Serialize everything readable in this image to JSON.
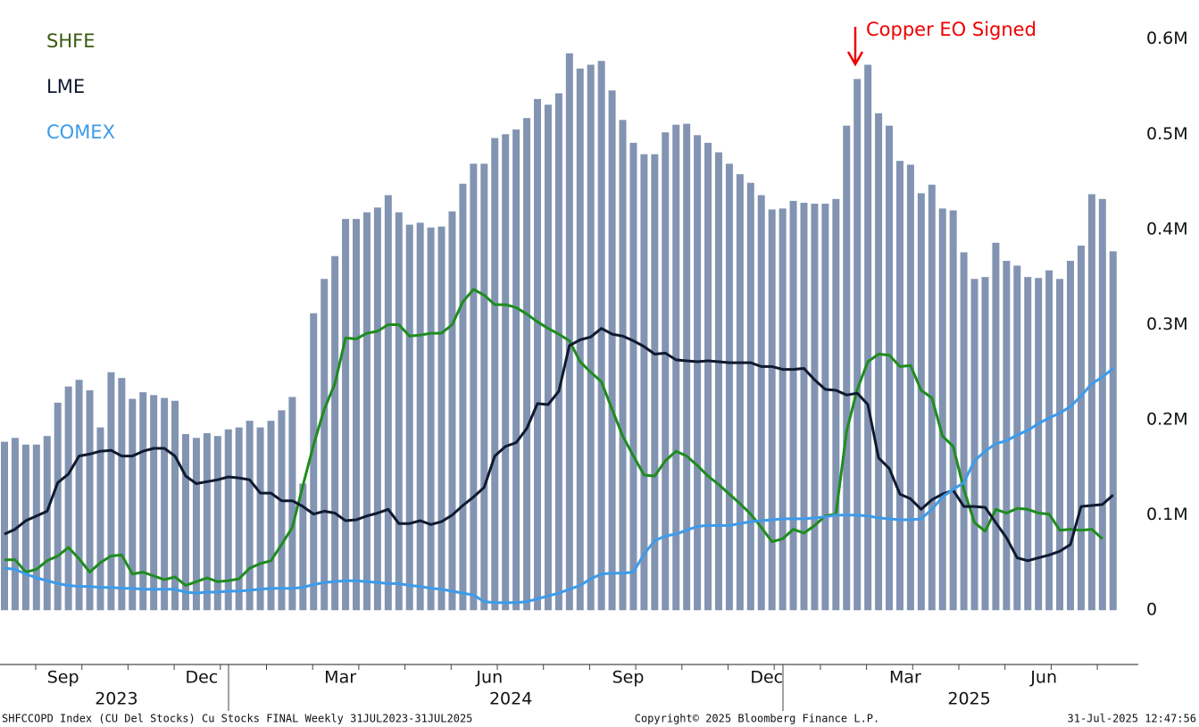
{
  "chart_data": {
    "type": "bar",
    "annotation": "Copper EO Signed",
    "footer": {
      "left": "SHFCCOPD Index (CU Del Stocks) Cu Stocks FINAL  Weekly 31JUL2023-31JUL2025",
      "center": "Copyright© 2025 Bloomberg Finance L.P.",
      "right": "31-Jul-2025 12:47:56"
    },
    "categories": [
      null,
      null,
      null,
      null,
      null,
      "Sep",
      null,
      null,
      null,
      null,
      null,
      null,
      null,
      null,
      null,
      null,
      null,
      null,
      "Dec",
      null,
      null,
      null,
      null,
      null,
      null,
      null,
      null,
      null,
      null,
      null,
      null,
      "Mar",
      null,
      null,
      null,
      null,
      null,
      null,
      null,
      null,
      null,
      null,
      null,
      null,
      null,
      "Jun",
      null,
      null,
      null,
      null,
      null,
      null,
      null,
      null,
      null,
      null,
      null,
      null,
      "Sep",
      null,
      null,
      null,
      null,
      null,
      null,
      null,
      null,
      null,
      null,
      null,
      null,
      "Dec",
      null,
      null,
      null,
      null,
      null,
      null,
      null,
      null,
      null,
      null,
      null,
      null,
      "Mar",
      null,
      null,
      null,
      null,
      null,
      null,
      null,
      null,
      null,
      null,
      null,
      null,
      "Jun",
      null,
      null,
      null,
      null,
      null,
      null,
      null
    ],
    "year_labels": [
      null,
      null,
      null,
      null,
      null,
      null,
      null,
      null,
      null,
      null,
      "2023",
      null,
      null,
      null,
      null,
      null,
      null,
      null,
      null,
      null,
      null,
      null,
      null,
      null,
      null,
      null,
      null,
      null,
      null,
      null,
      null,
      null,
      null,
      null,
      null,
      null,
      null,
      null,
      null,
      null,
      null,
      null,
      null,
      null,
      null,
      null,
      null,
      "2024",
      null,
      null,
      null,
      null,
      null,
      null,
      null,
      null,
      null,
      null,
      null,
      null,
      null,
      null,
      null,
      null,
      null,
      null,
      null,
      null,
      null,
      null,
      null,
      null,
      null,
      null,
      null,
      null,
      null,
      null,
      null,
      null,
      null,
      null,
      null,
      null,
      null,
      null,
      null,
      null,
      null,
      null,
      "2025",
      null,
      null,
      null,
      null,
      null,
      null,
      null,
      null,
      null,
      null,
      null,
      null,
      null,
      null
    ],
    "values": [
      0.177,
      0.181,
      0.174,
      0.174,
      0.183,
      0.218,
      0.235,
      0.242,
      0.231,
      0.192,
      0.25,
      0.244,
      0.222,
      0.229,
      0.226,
      0.223,
      0.22,
      0.185,
      0.181,
      0.186,
      0.183,
      0.19,
      0.192,
      0.199,
      0.192,
      0.199,
      0.21,
      0.224,
      0.133,
      0.312,
      0.348,
      0.372,
      0.411,
      0.411,
      0.418,
      0.423,
      0.436,
      0.418,
      0.405,
      0.407,
      0.402,
      0.403,
      0.419,
      0.448,
      0.469,
      0.469,
      0.496,
      0.5,
      0.505,
      0.517,
      0.537,
      0.531,
      0.543,
      0.585,
      0.569,
      0.573,
      0.577,
      0.546,
      0.515,
      0.491,
      0.479,
      0.479,
      0.502,
      0.51,
      0.511,
      0.499,
      0.491,
      0.481,
      0.469,
      0.458,
      0.449,
      0.436,
      0.421,
      0.422,
      0.43,
      0.428,
      0.427,
      0.427,
      0.432,
      0.509,
      0.558,
      0.573,
      0.522,
      0.509,
      0.472,
      0.468,
      0.438,
      0.447,
      0.422,
      0.42,
      0.376,
      0.348,
      0.35,
      0.386,
      0.367,
      0.362,
      0.35,
      0.349,
      0.357,
      0.348,
      0.367,
      0.383,
      0.437,
      0.432,
      0.377
    ],
    "color": "#8294b2",
    "series": [
      {
        "name": "SHFE",
        "color": "#1e8c1e",
        "legend_color": "#3a5a10",
        "values": [
          0.053,
          0.053,
          0.04,
          0.043,
          0.052,
          0.057,
          0.066,
          0.054,
          0.04,
          0.05,
          0.057,
          0.058,
          0.038,
          0.04,
          0.036,
          0.032,
          0.035,
          0.026,
          0.03,
          0.034,
          0.03,
          0.031,
          0.033,
          0.044,
          0.049,
          0.052,
          0.069,
          0.087,
          0.131,
          0.174,
          0.211,
          0.238,
          0.286,
          0.285,
          0.291,
          0.293,
          0.3,
          0.3,
          0.288,
          0.289,
          0.291,
          0.291,
          0.3,
          0.324,
          0.337,
          0.331,
          0.321,
          0.321,
          0.318,
          0.311,
          0.303,
          0.296,
          0.29,
          0.283,
          0.261,
          0.25,
          0.24,
          0.211,
          0.183,
          0.162,
          0.142,
          0.141,
          0.157,
          0.167,
          0.162,
          0.152,
          0.141,
          0.132,
          0.122,
          0.112,
          0.101,
          0.087,
          0.072,
          0.075,
          0.085,
          0.081,
          0.089,
          0.099,
          0.101,
          0.188,
          0.232,
          0.261,
          0.269,
          0.268,
          0.256,
          0.257,
          0.231,
          0.223,
          0.183,
          0.172,
          0.127,
          0.092,
          0.083,
          0.106,
          0.102,
          0.107,
          0.106,
          0.102,
          0.101,
          0.084,
          0.085,
          0.084,
          0.085,
          0.075,
          null
        ]
      },
      {
        "name": "LME",
        "color": "#0f1a30",
        "legend_color": "#0f1a30",
        "values": [
          0.08,
          0.085,
          0.094,
          0.099,
          0.104,
          0.134,
          0.143,
          0.162,
          0.164,
          0.167,
          0.168,
          0.162,
          0.162,
          0.167,
          0.17,
          0.17,
          0.162,
          0.141,
          0.133,
          0.135,
          0.137,
          0.14,
          0.139,
          0.137,
          0.123,
          0.123,
          0.115,
          0.115,
          0.109,
          0.101,
          0.104,
          0.102,
          0.094,
          0.095,
          0.099,
          0.102,
          0.106,
          0.091,
          0.091,
          0.094,
          0.09,
          0.093,
          0.1,
          0.11,
          0.119,
          0.129,
          0.162,
          0.172,
          0.176,
          0.191,
          0.217,
          0.216,
          0.23,
          0.278,
          0.284,
          0.287,
          0.296,
          0.29,
          0.288,
          0.283,
          0.277,
          0.269,
          0.27,
          0.263,
          0.262,
          0.261,
          0.262,
          0.261,
          0.26,
          0.26,
          0.26,
          0.256,
          0.256,
          0.253,
          0.253,
          0.254,
          0.242,
          0.232,
          0.231,
          0.226,
          0.228,
          0.216,
          0.16,
          0.149,
          0.122,
          0.117,
          0.106,
          0.116,
          0.122,
          0.126,
          0.109,
          0.109,
          0.108,
          0.092,
          0.076,
          0.055,
          0.052,
          0.055,
          0.058,
          0.062,
          0.069,
          0.109,
          0.11,
          0.111,
          0.121
        ]
      },
      {
        "name": "COMEX",
        "color": "#3d9be9",
        "legend_color": "#3d9be9",
        "values": [
          0.044,
          0.043,
          0.038,
          0.034,
          0.031,
          0.028,
          0.026,
          0.025,
          0.025,
          0.024,
          0.024,
          0.023,
          0.023,
          0.022,
          0.022,
          0.022,
          0.022,
          0.019,
          0.018,
          0.019,
          0.019,
          0.02,
          0.02,
          0.021,
          0.022,
          0.023,
          0.023,
          0.023,
          0.024,
          0.027,
          0.029,
          0.03,
          0.031,
          0.031,
          0.03,
          0.029,
          0.028,
          0.028,
          0.026,
          0.025,
          0.023,
          0.022,
          0.02,
          0.018,
          0.016,
          0.009,
          0.008,
          0.008,
          0.008,
          0.009,
          0.012,
          0.015,
          0.018,
          0.022,
          0.026,
          0.033,
          0.038,
          0.039,
          0.039,
          0.04,
          0.059,
          0.073,
          0.078,
          0.08,
          0.084,
          0.088,
          0.089,
          0.089,
          0.089,
          0.091,
          0.093,
          0.094,
          0.095,
          0.096,
          0.096,
          0.096,
          0.097,
          0.098,
          0.1,
          0.1,
          0.1,
          0.099,
          0.097,
          0.096,
          0.095,
          0.095,
          0.096,
          0.106,
          0.119,
          0.127,
          0.134,
          0.157,
          0.167,
          0.175,
          0.178,
          0.184,
          0.189,
          0.196,
          0.202,
          0.207,
          0.214,
          0.225,
          0.238,
          0.245,
          0.254
        ]
      }
    ],
    "ylim": [
      -0.057,
      0.641
    ],
    "yticks": [
      0,
      {
        "value": 0.1,
        "label": "0.1M"
      },
      {
        "value": 0.2,
        "label": "0.2M"
      },
      {
        "value": 0.3,
        "label": "0.3M"
      },
      {
        "value": 0.4,
        "label": "0.4M"
      },
      {
        "value": 0.5,
        "label": "0.5M"
      },
      {
        "value": 0.6,
        "label": "0.6M"
      }
    ],
    "grid": false
  }
}
